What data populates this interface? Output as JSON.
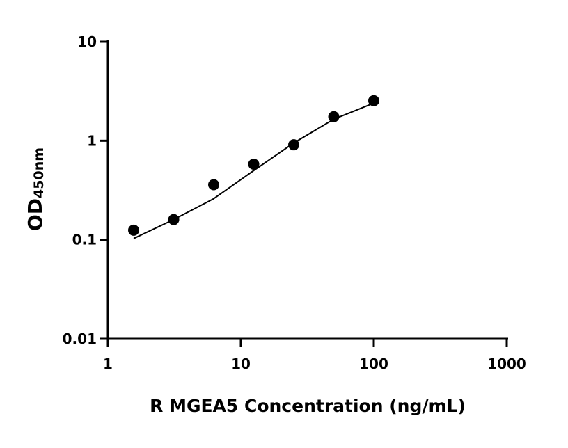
{
  "chart_data": {
    "type": "scatter",
    "xlabel": "R MGEA5 Concentration (ng/mL)",
    "ylabel": "OD",
    "ylabel_sub": "450nm",
    "xlog": true,
    "ylog": true,
    "xlim": [
      1,
      1000
    ],
    "xticks": [
      1,
      10,
      100,
      1000
    ],
    "ylim": [
      0.01,
      10
    ],
    "yticks": [
      0.01,
      0.1,
      1,
      10
    ],
    "series": [
      {
        "style": "points",
        "color": "#000000",
        "x": [
          1.5625,
          3.125,
          6.25,
          12.5,
          25,
          50,
          100
        ],
        "values": [
          0.125,
          0.16,
          0.36,
          0.58,
          0.91,
          1.75,
          2.54
        ]
      },
      {
        "style": "line",
        "color": "#000000",
        "x": [
          1.5625,
          3.125,
          6.25,
          12.5,
          25,
          50,
          100
        ],
        "values": [
          0.103,
          0.16,
          0.26,
          0.5,
          0.95,
          1.65,
          2.4
        ]
      }
    ]
  }
}
